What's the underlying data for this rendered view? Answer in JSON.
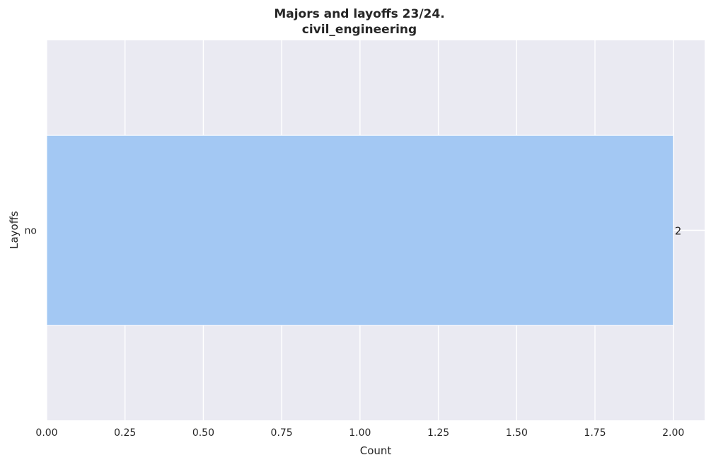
{
  "chart_data": {
    "type": "bar",
    "orientation": "horizontal",
    "title": "Majors and layoffs 23/24.",
    "subtitle": "civil_engineering",
    "xlabel": "Count",
    "ylabel": "Layoffs",
    "categories": [
      "no"
    ],
    "values": [
      2
    ],
    "data_labels": [
      "2"
    ],
    "xlim": [
      0,
      2.1
    ],
    "xticks": [
      0,
      0.25,
      0.5,
      0.75,
      1.0,
      1.25,
      1.5,
      1.75,
      2.0
    ],
    "xtick_labels": [
      "0.00",
      "0.25",
      "0.50",
      "0.75",
      "1.00",
      "1.25",
      "1.50",
      "1.75",
      "2.00"
    ],
    "grid": true,
    "colors": {
      "bar": "#a3c8f3",
      "plot_background": "#eaeaf2",
      "grid": "#ffffff",
      "text": "#262626"
    }
  }
}
